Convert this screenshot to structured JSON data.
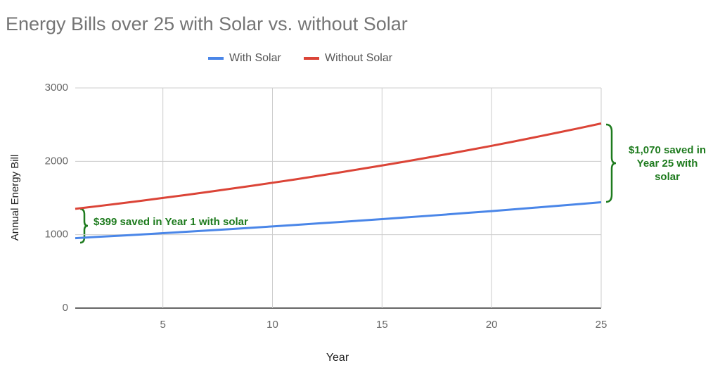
{
  "chart_data": {
    "type": "line",
    "title": "Energy Bills over 25 with Solar vs. without Solar",
    "x_label": "Year",
    "y_label": "Annual Energy Bill",
    "x": [
      1,
      2,
      3,
      4,
      5,
      6,
      7,
      8,
      9,
      10,
      11,
      12,
      13,
      14,
      15,
      16,
      17,
      18,
      19,
      20,
      21,
      22,
      23,
      24,
      25
    ],
    "series": [
      {
        "name": "With Solar",
        "color": "#4a86e8",
        "values": [
          953,
          970,
          986,
          1003,
          1021,
          1039,
          1057,
          1075,
          1094,
          1113,
          1132,
          1152,
          1172,
          1192,
          1213,
          1234,
          1255,
          1277,
          1300,
          1322,
          1345,
          1369,
          1393,
          1417,
          1442
        ]
      },
      {
        "name": "Without Solar",
        "color": "#db4437",
        "values": [
          1353,
          1388,
          1425,
          1462,
          1501,
          1540,
          1580,
          1622,
          1664,
          1708,
          1752,
          1798,
          1845,
          1894,
          1943,
          1994,
          2046,
          2100,
          2155,
          2211,
          2269,
          2329,
          2390,
          2452,
          2516
        ]
      }
    ],
    "xlim": [
      1,
      25
    ],
    "xticks": [
      5,
      10,
      15,
      20,
      25
    ],
    "ylim": [
      0,
      3000
    ],
    "yticks": [
      0,
      1000,
      2000,
      3000
    ],
    "grid": true,
    "legend": "top",
    "annotations": [
      {
        "lines": [
          "$399 saved in Year 1 with solar"
        ],
        "color": "#1e7b1e"
      },
      {
        "lines": [
          "$1,070 saved in",
          "Year 25 with",
          "solar"
        ],
        "color": "#1e7b1e"
      }
    ]
  }
}
